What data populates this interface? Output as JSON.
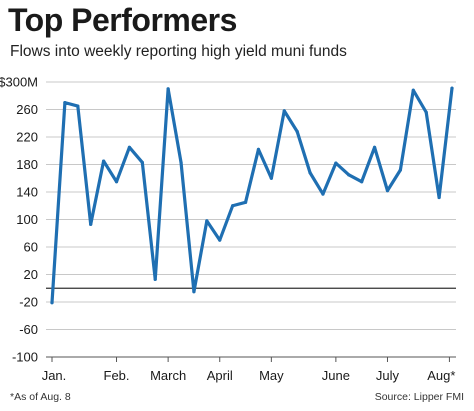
{
  "header": {
    "title": "Top Performers",
    "subtitle": "Flows into weekly reporting high yield muni funds"
  },
  "footer": {
    "note": "*As of Aug. 8",
    "source": "Source: Lipper FMI"
  },
  "colors": {
    "line": "#1f6fb2",
    "grid": "#c8c8c8",
    "zero_line": "#333333",
    "axis": "#555555"
  },
  "chart_data": {
    "type": "line",
    "title": "Top Performers",
    "subtitle": "Flows into weekly reporting high yield muni funds",
    "xlabel": "",
    "ylabel": "",
    "ylim": [
      -100,
      300
    ],
    "y_ticks": [
      -100,
      -60,
      -20,
      20,
      60,
      100,
      140,
      180,
      220,
      260,
      300
    ],
    "y_tick_labels": [
      "-100",
      "-60",
      "-20",
      "20",
      "60",
      "100",
      "140",
      "180",
      "220",
      "260",
      "$300M"
    ],
    "grid": true,
    "month_labels": [
      "Jan.",
      "Feb.",
      "March",
      "April",
      "May",
      "June",
      "July",
      "Aug*"
    ],
    "month_label_week_index": [
      0,
      5,
      9,
      13,
      17,
      22,
      26,
      30.8
    ],
    "series": [
      {
        "values": [
          -21,
          270,
          265,
          93,
          185,
          155,
          205,
          183,
          13,
          290,
          183,
          -5,
          98,
          70,
          120,
          125,
          202,
          160,
          258,
          228,
          168,
          137,
          182,
          165,
          155,
          205,
          142,
          172,
          288,
          256,
          132,
          291
        ]
      }
    ]
  }
}
